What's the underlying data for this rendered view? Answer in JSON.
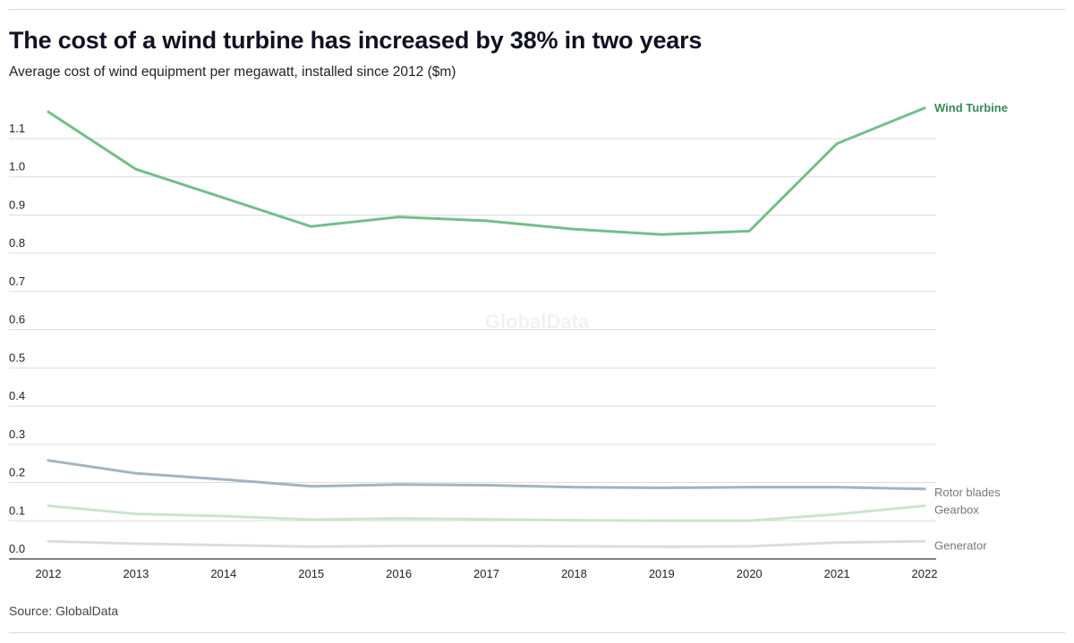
{
  "header": {
    "title": "The cost of a wind turbine has increased by 38% in two years",
    "subtitle": "Average cost of wind equipment per megawatt, installed since 2012 ($m)"
  },
  "footer": {
    "source": "Source: GlobalData"
  },
  "watermark": "GlobalData",
  "chart_data": {
    "type": "line",
    "x": [
      2012,
      2013,
      2014,
      2015,
      2016,
      2017,
      2018,
      2019,
      2020,
      2021,
      2022
    ],
    "xlabel": "",
    "ylabel": "",
    "ylim": [
      0,
      1.1
    ],
    "yticks": [
      "0.0",
      "0.1",
      "0.2",
      "0.3",
      "0.4",
      "0.5",
      "0.6",
      "0.7",
      "0.8",
      "0.9",
      "1.0",
      "1.1"
    ],
    "grid": true,
    "legend": "inline labels at right end of each line",
    "series": [
      {
        "name": "Wind Turbine",
        "color": "#72bf8a",
        "label_color": "#3a8a55",
        "bold": true,
        "values": [
          1.17,
          1.02,
          0.945,
          0.87,
          0.895,
          0.885,
          0.863,
          0.849,
          0.858,
          1.087,
          1.18
        ]
      },
      {
        "name": "Rotor blades",
        "color": "#a2b4bf",
        "label_color": "#777777",
        "bold": false,
        "values": [
          0.258,
          0.224,
          0.208,
          0.19,
          0.195,
          0.193,
          0.188,
          0.186,
          0.188,
          0.188,
          0.183
        ]
      },
      {
        "name": "Gearbox",
        "color": "#c9e6cc",
        "label_color": "#777777",
        "bold": false,
        "values": [
          0.139,
          0.118,
          0.112,
          0.103,
          0.106,
          0.104,
          0.101,
          0.1,
          0.1,
          0.117,
          0.139
        ]
      },
      {
        "name": "Generator",
        "color": "#dcdcdc",
        "label_color": "#777777",
        "bold": false,
        "values": [
          0.046,
          0.04,
          0.036,
          0.032,
          0.034,
          0.034,
          0.033,
          0.032,
          0.033,
          0.043,
          0.046
        ]
      }
    ]
  }
}
